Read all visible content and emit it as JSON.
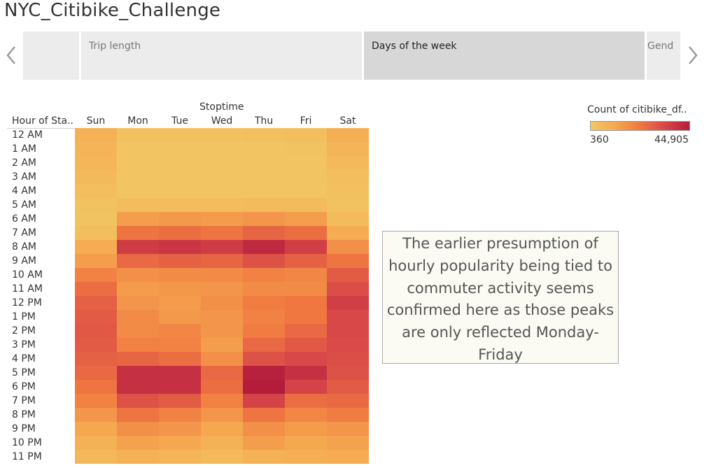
{
  "dashboard": {
    "title": "NYC_Citibike_Challenge"
  },
  "tabs": [
    {
      "label": ""
    },
    {
      "label": "Trip length"
    },
    {
      "label": "Days of the week",
      "selected": true
    },
    {
      "label": "Gend"
    }
  ],
  "nav": {
    "prev_icon": "chevron-left-icon",
    "next_icon": "chevron-right-icon"
  },
  "chart_data": {
    "type": "heatmap",
    "title": "",
    "column_title": "Stoptime",
    "row_header": "Hour of Sta..",
    "columns": [
      "Sun",
      "Mon",
      "Tue",
      "Wed",
      "Thu",
      "Fri",
      "Sat"
    ],
    "rows": [
      "12 AM",
      "1 AM",
      "2 AM",
      "3 AM",
      "4 AM",
      "5 AM",
      "6 AM",
      "7 AM",
      "8 AM",
      "9 AM",
      "10 AM",
      "11 AM",
      "12 PM",
      "1 PM",
      "2 PM",
      "3 PM",
      "4 PM",
      "5 PM",
      "6 PM",
      "7 PM",
      "8 PM",
      "9 PM",
      "10 PM",
      "11 PM"
    ],
    "values": [
      [
        0.18,
        0.05,
        0.05,
        0.05,
        0.06,
        0.07,
        0.2
      ],
      [
        0.16,
        0.03,
        0.03,
        0.03,
        0.03,
        0.04,
        0.15
      ],
      [
        0.14,
        0.02,
        0.02,
        0.02,
        0.02,
        0.03,
        0.12
      ],
      [
        0.11,
        0.02,
        0.02,
        0.02,
        0.02,
        0.02,
        0.08
      ],
      [
        0.08,
        0.02,
        0.02,
        0.02,
        0.03,
        0.03,
        0.06
      ],
      [
        0.05,
        0.09,
        0.09,
        0.09,
        0.1,
        0.1,
        0.05
      ],
      [
        0.04,
        0.3,
        0.33,
        0.32,
        0.35,
        0.3,
        0.1
      ],
      [
        0.08,
        0.52,
        0.55,
        0.52,
        0.6,
        0.55,
        0.22
      ],
      [
        0.22,
        0.82,
        0.85,
        0.82,
        0.92,
        0.8,
        0.38
      ],
      [
        0.3,
        0.58,
        0.62,
        0.6,
        0.7,
        0.62,
        0.52
      ],
      [
        0.45,
        0.38,
        0.4,
        0.4,
        0.45,
        0.42,
        0.65
      ],
      [
        0.55,
        0.32,
        0.34,
        0.35,
        0.4,
        0.4,
        0.72
      ],
      [
        0.62,
        0.35,
        0.32,
        0.38,
        0.48,
        0.5,
        0.8
      ],
      [
        0.65,
        0.4,
        0.33,
        0.35,
        0.45,
        0.5,
        0.75
      ],
      [
        0.66,
        0.4,
        0.42,
        0.35,
        0.48,
        0.58,
        0.75
      ],
      [
        0.65,
        0.45,
        0.45,
        0.3,
        0.58,
        0.66,
        0.74
      ],
      [
        0.62,
        0.6,
        0.55,
        0.38,
        0.7,
        0.75,
        0.72
      ],
      [
        0.58,
        0.88,
        0.88,
        0.58,
        0.97,
        0.88,
        0.7
      ],
      [
        0.52,
        0.88,
        0.88,
        0.55,
        1.0,
        0.78,
        0.65
      ],
      [
        0.45,
        0.7,
        0.65,
        0.45,
        0.78,
        0.55,
        0.58
      ],
      [
        0.35,
        0.52,
        0.45,
        0.35,
        0.52,
        0.42,
        0.48
      ],
      [
        0.25,
        0.38,
        0.35,
        0.25,
        0.38,
        0.32,
        0.35
      ],
      [
        0.18,
        0.28,
        0.25,
        0.18,
        0.3,
        0.25,
        0.28
      ],
      [
        0.13,
        0.18,
        0.16,
        0.12,
        0.18,
        0.2,
        0.22
      ]
    ],
    "value_scale": "fraction of color range (0 = min, 1 = max)",
    "legend": {
      "title": "Count of citibike_df..",
      "min_label": "360",
      "max_label": "44,905",
      "min": 360,
      "max": 44905,
      "color_stops": [
        "#f2c864",
        "#f5a850",
        "#f07840",
        "#d84848",
        "#b41c3c"
      ],
      "position": "top-right"
    }
  },
  "annotation": {
    "text": "The earlier presumption of hourly popularity being tied to commuter activity seems confirmed here as those peaks are only reflected Monday-Friday"
  }
}
